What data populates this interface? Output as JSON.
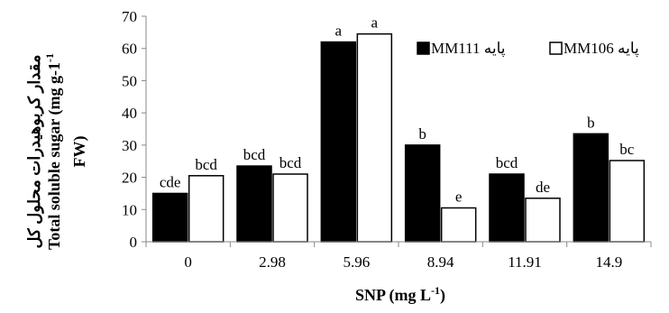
{
  "chart_data": {
    "type": "bar",
    "categories": [
      "0",
      "2.98",
      "5.96",
      "8.94",
      "11.91",
      "14.9"
    ],
    "series": [
      {
        "name": "پایه MM111",
        "color": "#000000",
        "values": [
          15,
          23.5,
          62,
          30,
          21,
          33.5
        ],
        "significance": [
          "cde",
          "bcd",
          "a",
          "b",
          "bcd",
          "b"
        ]
      },
      {
        "name": "پایه MM106",
        "color": "#ffffff",
        "values": [
          20.5,
          21,
          64.5,
          10.5,
          13.5,
          25.2
        ],
        "significance": [
          "bcd",
          "bcd",
          "a",
          "e",
          "de",
          "bc"
        ]
      }
    ],
    "yticks": [
      0,
      10,
      20,
      30,
      40,
      50,
      60,
      70
    ],
    "ylim": [
      0,
      70
    ],
    "xlabel": "SNP (mg L-1)",
    "ylabel_line1": "مقدار کربوهیدرات محلول کل",
    "ylabel_line2": "Total soluble sugar (mg g-1",
    "ylabel_line3": "FW)",
    "grid": false,
    "legend_position": "top-right"
  }
}
